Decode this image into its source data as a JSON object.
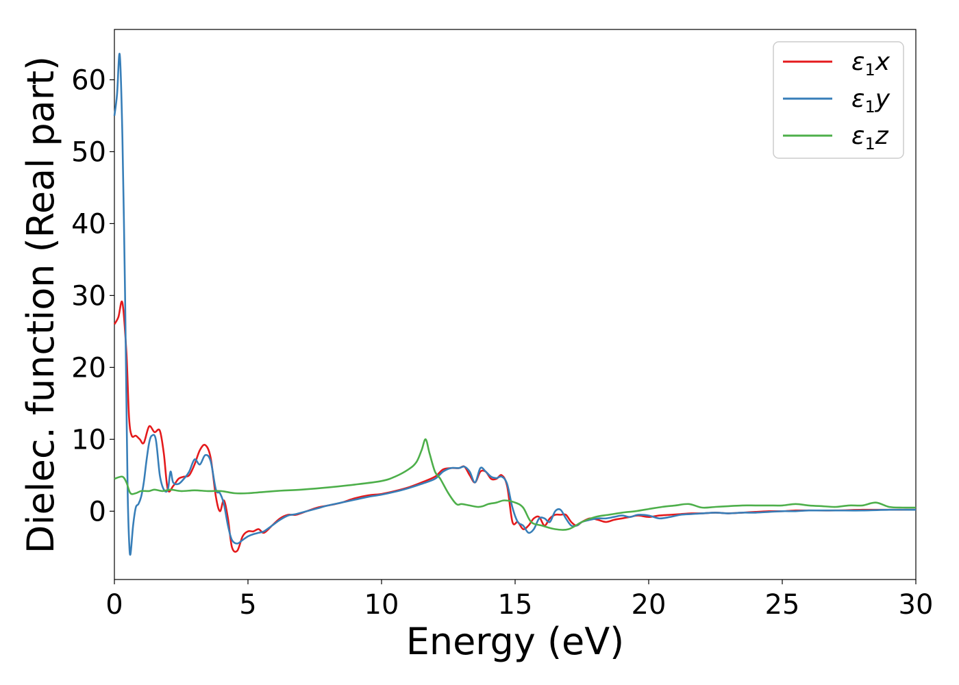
{
  "chart_data": {
    "type": "line",
    "xlabel": "Energy (eV)",
    "ylabel": "Dielec. function (Real part)",
    "xlim": [
      0,
      30
    ],
    "ylim": [
      -9.5,
      67
    ],
    "xticks": [
      0,
      5,
      10,
      15,
      20,
      25,
      30
    ],
    "yticks": [
      0,
      10,
      20,
      30,
      40,
      50,
      60
    ],
    "grid": false,
    "legend_position": "top-right",
    "series": [
      {
        "name": "ε1x",
        "legend": {
          "symbol": "ε",
          "sub": "1",
          "var": "x"
        },
        "color": "#e41a1c",
        "x": [
          0,
          0.15,
          0.3,
          0.45,
          0.55,
          0.65,
          0.8,
          0.95,
          1.1,
          1.3,
          1.5,
          1.7,
          1.85,
          2.0,
          2.2,
          2.4,
          2.6,
          2.8,
          3.0,
          3.2,
          3.4,
          3.6,
          3.8,
          3.95,
          4.1,
          4.25,
          4.4,
          4.6,
          4.8,
          5.0,
          5.2,
          5.4,
          5.6,
          5.9,
          6.2,
          6.5,
          6.8,
          7.2,
          7.6,
          8.0,
          8.5,
          9.0,
          9.5,
          10.0,
          10.5,
          11.0,
          11.5,
          12.0,
          12.3,
          12.6,
          12.9,
          13.1,
          13.3,
          13.5,
          13.7,
          13.9,
          14.1,
          14.3,
          14.5,
          14.7,
          14.9,
          15.1,
          15.3,
          15.5,
          15.7,
          15.9,
          16.1,
          16.3,
          16.5,
          16.7,
          16.9,
          17.1,
          17.3,
          17.5,
          17.8,
          18.1,
          18.4,
          18.7,
          19.0,
          19.3,
          19.6,
          20.0,
          20.4,
          20.8,
          21.2,
          21.6,
          22.0,
          22.5,
          23.0,
          23.5,
          24.0,
          24.5,
          25.0,
          25.5,
          26.0,
          27.0,
          28.0,
          29.0,
          30.0
        ],
        "y": [
          26,
          27,
          29,
          22,
          13,
          10.5,
          10.5,
          10,
          9.5,
          11.8,
          11,
          11.2,
          8,
          3,
          3.5,
          4.5,
          4.8,
          5,
          6.5,
          8.5,
          9.2,
          7.5,
          2,
          0,
          1.5,
          -1,
          -5,
          -5.5,
          -3.5,
          -2.8,
          -2.8,
          -2.5,
          -3,
          -2,
          -1,
          -0.5,
          -0.5,
          0,
          0.5,
          0.8,
          1.2,
          1.8,
          2.2,
          2.4,
          2.8,
          3.3,
          4.0,
          4.8,
          5.8,
          6.0,
          6.0,
          6.2,
          5.0,
          4.0,
          5.5,
          5.5,
          4.5,
          4.5,
          5.0,
          3.5,
          -1.5,
          -1.5,
          -2.5,
          -2.0,
          -1.0,
          -0.8,
          -2.0,
          -1.0,
          -0.5,
          -0.5,
          -0.5,
          -1.5,
          -2.0,
          -1.5,
          -1.0,
          -1.2,
          -1.5,
          -1.2,
          -1.0,
          -0.8,
          -0.6,
          -0.8,
          -0.6,
          -0.5,
          -0.4,
          -0.3,
          -0.3,
          -0.2,
          -0.3,
          -0.2,
          -0.1,
          0,
          0,
          0.1,
          0.1,
          0.1,
          0.2,
          0.2,
          0.2
        ]
      },
      {
        "name": "ε1y",
        "legend": {
          "symbol": "ε",
          "sub": "1",
          "var": "y"
        },
        "color": "#377eb8",
        "x": [
          0,
          0.1,
          0.2,
          0.3,
          0.4,
          0.45,
          0.5,
          0.55,
          0.6,
          0.7,
          0.8,
          0.9,
          1.0,
          1.1,
          1.2,
          1.3,
          1.4,
          1.55,
          1.7,
          1.85,
          2.0,
          2.1,
          2.2,
          2.4,
          2.6,
          2.8,
          3.0,
          3.2,
          3.4,
          3.6,
          3.8,
          3.95,
          4.1,
          4.25,
          4.4,
          4.6,
          4.8,
          5.0,
          5.2,
          5.4,
          5.6,
          5.9,
          6.2,
          6.5,
          6.8,
          7.2,
          7.6,
          8.0,
          8.5,
          9.0,
          9.5,
          10.0,
          10.5,
          11.0,
          11.5,
          12.0,
          12.3,
          12.6,
          12.9,
          13.1,
          13.3,
          13.5,
          13.7,
          13.9,
          14.1,
          14.3,
          14.5,
          14.7,
          14.9,
          15.1,
          15.3,
          15.5,
          15.7,
          15.9,
          16.1,
          16.3,
          16.5,
          16.7,
          16.9,
          17.1,
          17.3,
          17.5,
          17.8,
          18.1,
          18.4,
          18.7,
          19.0,
          19.3,
          19.6,
          20.0,
          20.4,
          20.8,
          21.2,
          21.6,
          22.0,
          22.5,
          23.0,
          23.5,
          24.0,
          24.5,
          25.0,
          25.5,
          26.0,
          27.0,
          28.0,
          29.0,
          30.0
        ],
        "y": [
          55,
          58,
          63.5,
          52,
          30,
          15,
          2,
          -4,
          -6,
          -2,
          0.5,
          1,
          2,
          4,
          7,
          9.5,
          10.5,
          10,
          5,
          3,
          3,
          5.5,
          4,
          3.8,
          4.5,
          5.5,
          7.2,
          6.5,
          7.8,
          7,
          3,
          2.5,
          1,
          -2,
          -4,
          -4.5,
          -4,
          -3.5,
          -3.2,
          -3,
          -2.8,
          -2,
          -1.2,
          -0.6,
          -0.4,
          0,
          0.4,
          0.8,
          1.2,
          1.6,
          2.0,
          2.3,
          2.7,
          3.2,
          3.8,
          4.5,
          5.5,
          6.0,
          6.0,
          6.2,
          5.5,
          4.0,
          6.0,
          5.5,
          4.8,
          4.6,
          4.8,
          3.8,
          0.5,
          -1.5,
          -2.0,
          -3.0,
          -2.5,
          -1.0,
          -1.0,
          -1.5,
          0.0,
          0.2,
          -1.0,
          -2.0,
          -2.0,
          -1.5,
          -1.2,
          -1.0,
          -1.0,
          -0.8,
          -0.6,
          -0.8,
          -0.5,
          -0.6,
          -1.0,
          -0.8,
          -0.5,
          -0.4,
          -0.3,
          -0.2,
          -0.3,
          -0.2,
          -0.2,
          -0.1,
          0,
          0,
          0.1,
          0.1,
          0.1,
          0.2,
          0.2
        ]
      },
      {
        "name": "ε1z",
        "legend": {
          "symbol": "ε",
          "sub": "1",
          "var": "z"
        },
        "color": "#4daf4a",
        "x": [
          0,
          0.3,
          0.45,
          0.6,
          0.8,
          1.0,
          1.3,
          1.5,
          1.8,
          2.1,
          2.5,
          3.0,
          3.5,
          4.0,
          4.5,
          5.0,
          6.0,
          7.0,
          8.0,
          9.0,
          10.0,
          10.5,
          11.0,
          11.3,
          11.5,
          11.65,
          11.8,
          12.0,
          12.2,
          12.5,
          12.8,
          13.0,
          13.3,
          13.6,
          13.8,
          14.0,
          14.3,
          14.6,
          15.0,
          15.3,
          15.6,
          16.0,
          16.5,
          17.0,
          17.5,
          18.0,
          18.5,
          19.0,
          19.5,
          20.0,
          20.5,
          21.0,
          21.5,
          22.0,
          22.5,
          23.0,
          23.5,
          24.0,
          24.5,
          25.0,
          25.5,
          26.0,
          26.5,
          27.0,
          27.5,
          28.0,
          28.5,
          29.0,
          29.5,
          30.0
        ],
        "y": [
          4.5,
          4.8,
          4.0,
          2.5,
          2.5,
          2.8,
          2.8,
          3.0,
          2.8,
          3.0,
          2.8,
          2.9,
          2.8,
          2.8,
          2.5,
          2.5,
          2.8,
          3.0,
          3.3,
          3.7,
          4.2,
          4.8,
          5.8,
          6.8,
          8.5,
          10.0,
          8.0,
          5.5,
          4.5,
          2.5,
          1.0,
          1.0,
          0.8,
          0.6,
          0.7,
          1.0,
          1.2,
          1.5,
          1.2,
          0.5,
          -1.5,
          -2.0,
          -2.5,
          -2.5,
          -1.5,
          -0.8,
          -0.5,
          -0.2,
          0,
          0.3,
          0.6,
          0.8,
          1.0,
          0.5,
          0.6,
          0.7,
          0.8,
          0.8,
          0.8,
          0.8,
          1.0,
          0.8,
          0.7,
          0.6,
          0.8,
          0.8,
          1.2,
          0.6,
          0.5,
          0.5
        ]
      }
    ]
  }
}
